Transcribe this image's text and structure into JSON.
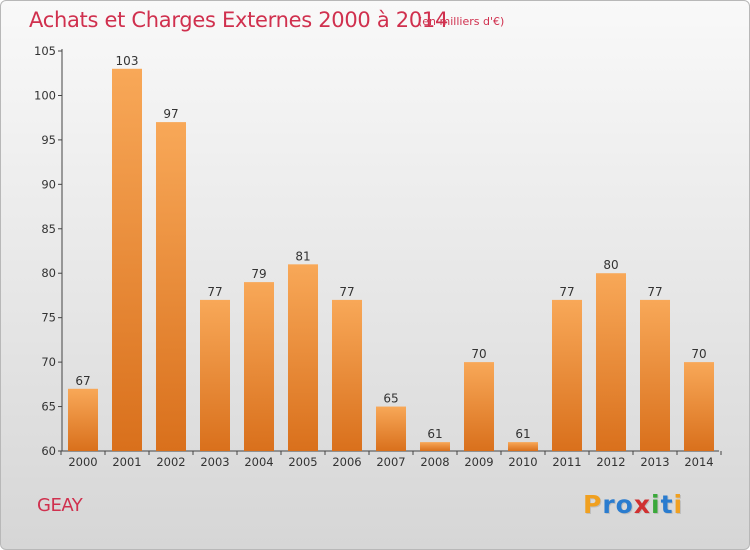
{
  "title": "Achats et Charges Externes 2000 à 2014",
  "subtitle": "(en milliers d'€)",
  "commune": "GEAY",
  "logo": {
    "letters": [
      "P",
      "r",
      "o",
      "x",
      "i",
      "t",
      "i"
    ],
    "colors": [
      "#f0a020",
      "#2a7ccf",
      "#2a7ccf",
      "#d03030",
      "#3aa83a",
      "#2a7ccf",
      "#f0a020"
    ]
  },
  "colors": {
    "bar_light": "#f8a858",
    "bar_dark": "#d9701c",
    "title": "#d0304e"
  },
  "chart_data": {
    "type": "bar",
    "title": "Achats et Charges Externes 2000 à 2014",
    "subtitle": "(en milliers d'€)",
    "categories": [
      "2000",
      "2001",
      "2002",
      "2003",
      "2004",
      "2005",
      "2006",
      "2007",
      "2008",
      "2009",
      "2010",
      "2011",
      "2012",
      "2013",
      "2014"
    ],
    "values": [
      67,
      103,
      97,
      77,
      79,
      81,
      77,
      65,
      61,
      70,
      61,
      77,
      80,
      77,
      70
    ],
    "ylim": [
      60,
      105
    ],
    "yticks": [
      60,
      65,
      70,
      75,
      80,
      85,
      90,
      95,
      100,
      105
    ],
    "grid": false
  }
}
